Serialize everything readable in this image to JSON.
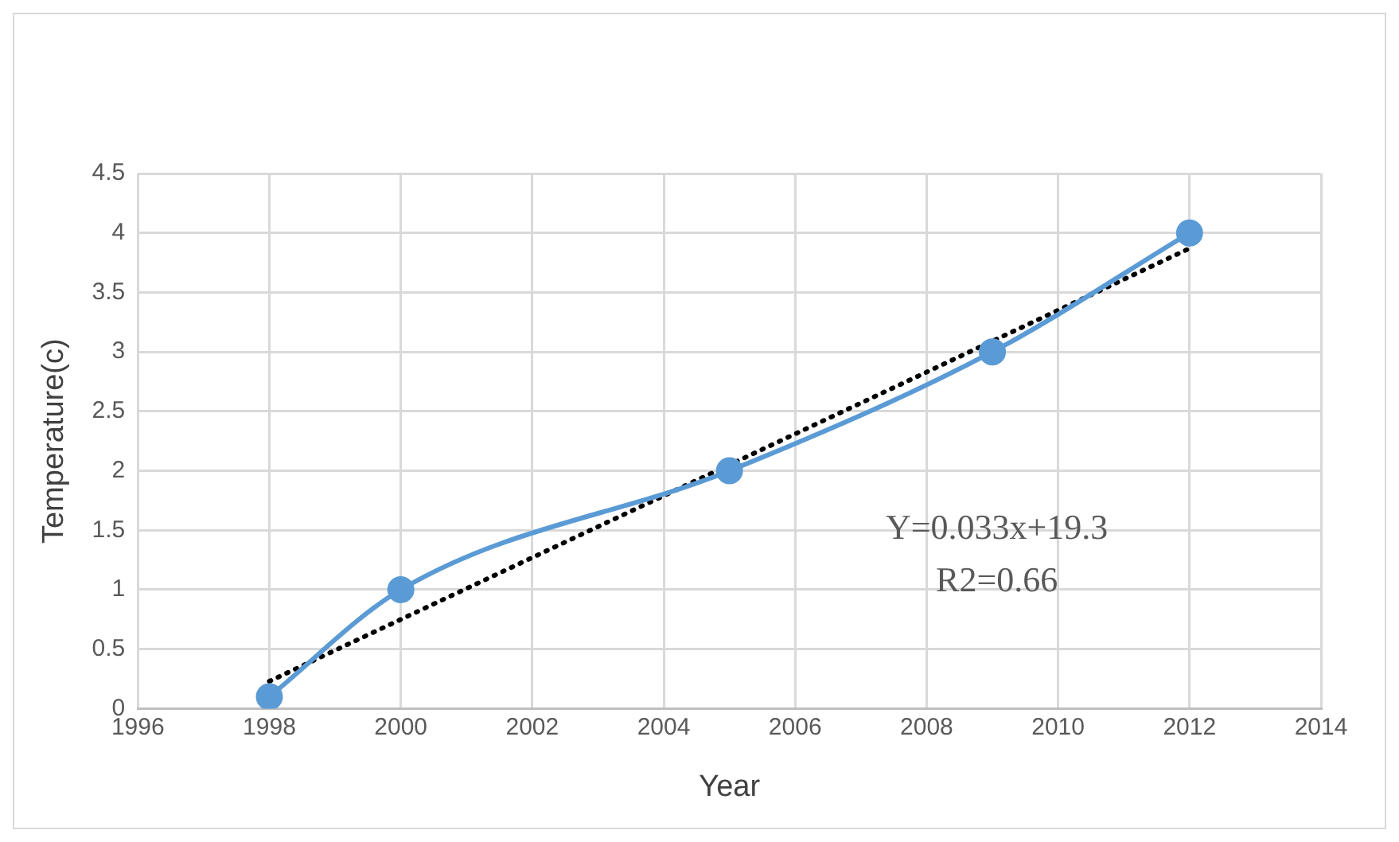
{
  "chart_data": {
    "type": "line",
    "xlabel": "Year",
    "ylabel": "Temperature(c)",
    "xlim": [
      1996,
      2014
    ],
    "xticks": [
      1996,
      1998,
      2000,
      2002,
      2004,
      2006,
      2008,
      2010,
      2012,
      2014
    ],
    "ylim": [
      0,
      4.5
    ],
    "yticks": [
      0,
      0.5,
      1,
      1.5,
      2,
      2.5,
      3,
      3.5,
      4,
      4.5
    ],
    "grid": true,
    "legend": false,
    "series": [
      {
        "color": "#5b9bd5",
        "x": [
          1998,
          2000,
          2005,
          2009,
          2012
        ],
        "values": [
          0.1,
          1,
          2,
          3,
          4
        ],
        "marker": "circle",
        "line_style": "solid"
      },
      {
        "color": "#000000",
        "x": [
          1998,
          2012
        ],
        "values": [
          0.23,
          3.87
        ],
        "marker": "none",
        "line_style": "dotted"
      }
    ],
    "annotations": [
      "Y=0.033x+19.3",
      "R2=0.66"
    ]
  }
}
